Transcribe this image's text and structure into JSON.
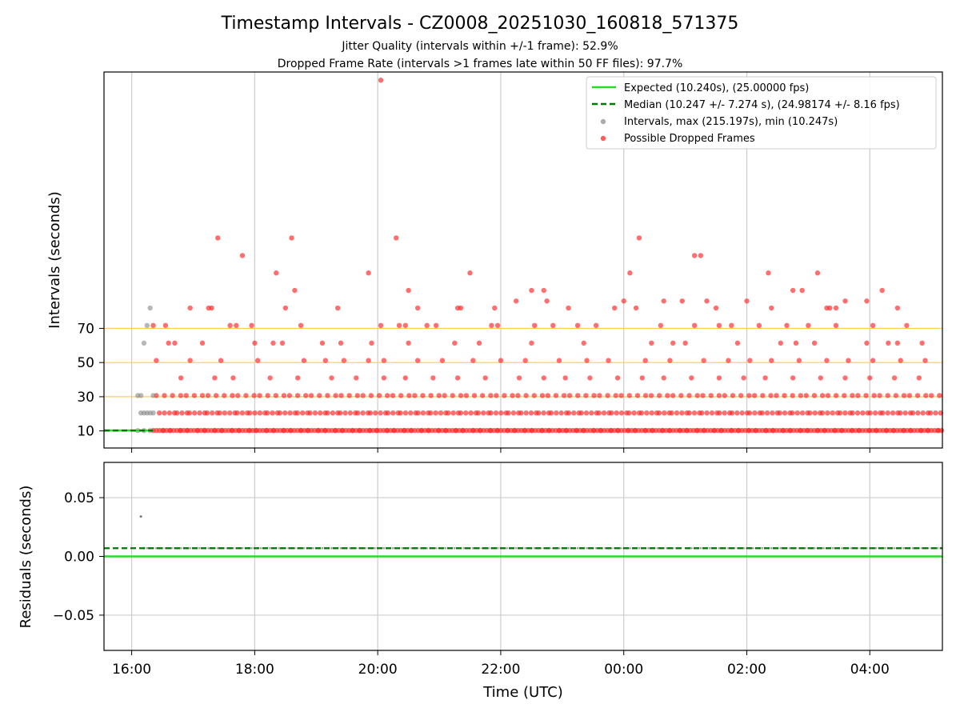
{
  "chart_data": {
    "type": "scatter",
    "title": "Timestamp Intervals - CZ0008_20251030_160818_571375",
    "subtitles": [
      "Jitter Quality (intervals within +/-1 frame): 52.9%",
      "Dropped Frame Rate (intervals >1 frames late within 50 FF files): 97.7%"
    ],
    "xlabel": "Time (UTC)",
    "x_ticks": [
      "16:00",
      "18:00",
      "20:00",
      "22:00",
      "00:00",
      "02:00",
      "04:00"
    ],
    "x_range_hours": [
      15.55,
      29.18
    ],
    "top_panel": {
      "ylabel": "Intervals (seconds)",
      "y_ticks": [
        "10",
        "30",
        "50",
        "70"
      ],
      "ylim": [
        0,
        220
      ],
      "reference_lines": [
        30,
        50,
        70
      ],
      "legend": [
        {
          "label": "Expected (10.240s), (25.00000 fps)",
          "style": "solid-line",
          "color": "#22dd22"
        },
        {
          "label": "Median (10.247 +/- 7.274 s), (24.98174 +/- 8.16 fps)",
          "style": "dashed-line",
          "color": "#007700"
        },
        {
          "label": "Intervals, max (215.197s), min (10.247s)",
          "style": "marker",
          "color": "#999999"
        },
        {
          "label": "Possible Dropped Frames",
          "style": "marker",
          "color": "#ff0000"
        }
      ],
      "expected_interval": 10.24,
      "median_interval": 10.247,
      "max_interval": 215.197,
      "min_interval": 10.247,
      "gray_points": [
        [
          16.1,
          10.2
        ],
        [
          16.15,
          20.5
        ],
        [
          16.2,
          20.5
        ],
        [
          16.25,
          20.5
        ],
        [
          16.3,
          20.5
        ],
        [
          16.35,
          20.5
        ],
        [
          16.1,
          30.7
        ],
        [
          16.15,
          30.7
        ],
        [
          16.35,
          30.7
        ],
        [
          16.2,
          61.4
        ],
        [
          16.25,
          71.7
        ],
        [
          16.3,
          81.9
        ],
        [
          16.2,
          10.2
        ],
        [
          16.3,
          10.2
        ]
      ],
      "outlier_points": [
        [
          17.4,
          122.9
        ],
        [
          17.8,
          112.6
        ],
        [
          18.35,
          102.4
        ],
        [
          18.6,
          122.9
        ],
        [
          18.65,
          92.2
        ],
        [
          17.3,
          81.9
        ],
        [
          17.25,
          81.9
        ],
        [
          16.95,
          81.9
        ],
        [
          18.5,
          81.9
        ],
        [
          19.35,
          81.9
        ],
        [
          19.85,
          102.4
        ],
        [
          20.05,
          215.2
        ],
        [
          20.3,
          122.9
        ],
        [
          20.5,
          92.2
        ],
        [
          20.65,
          81.9
        ],
        [
          21.3,
          81.9
        ],
        [
          21.35,
          81.9
        ],
        [
          21.5,
          102.4
        ],
        [
          21.9,
          81.9
        ],
        [
          22.25,
          86.0
        ],
        [
          22.5,
          92.2
        ],
        [
          22.7,
          92.2
        ],
        [
          22.75,
          86.0
        ],
        [
          24.1,
          102.4
        ],
        [
          24.25,
          122.9
        ],
        [
          24.2,
          81.9
        ],
        [
          24.65,
          86.0
        ],
        [
          24.95,
          86.0
        ],
        [
          25.15,
          112.6
        ],
        [
          25.25,
          112.6
        ],
        [
          25.35,
          86.0
        ],
        [
          25.5,
          81.9
        ],
        [
          26.0,
          86.0
        ],
        [
          26.35,
          102.4
        ],
        [
          26.4,
          81.9
        ],
        [
          26.75,
          92.2
        ],
        [
          26.9,
          92.2
        ],
        [
          27.15,
          102.4
        ],
        [
          27.3,
          81.9
        ],
        [
          27.45,
          81.9
        ],
        [
          27.6,
          86.0
        ],
        [
          27.95,
          86.0
        ],
        [
          28.2,
          92.2
        ],
        [
          28.45,
          81.9
        ],
        [
          23.85,
          81.9
        ],
        [
          23.1,
          81.9
        ],
        [
          24.0,
          86.0
        ],
        [
          27.35,
          81.9
        ],
        [
          16.35,
          71.7
        ],
        [
          16.55,
          71.7
        ],
        [
          17.6,
          71.7
        ],
        [
          17.7,
          71.7
        ],
        [
          17.95,
          71.7
        ],
        [
          18.75,
          71.7
        ],
        [
          20.05,
          71.7
        ],
        [
          20.35,
          71.7
        ],
        [
          20.45,
          71.7
        ],
        [
          20.8,
          71.7
        ],
        [
          20.95,
          71.7
        ],
        [
          21.85,
          71.7
        ],
        [
          21.95,
          71.7
        ],
        [
          22.55,
          71.7
        ],
        [
          22.85,
          71.7
        ],
        [
          23.25,
          71.7
        ],
        [
          23.55,
          71.7
        ],
        [
          24.6,
          71.7
        ],
        [
          25.15,
          71.7
        ],
        [
          25.55,
          71.7
        ],
        [
          25.75,
          71.7
        ],
        [
          26.2,
          71.7
        ],
        [
          26.65,
          71.7
        ],
        [
          27.0,
          71.7
        ],
        [
          27.45,
          71.7
        ],
        [
          28.05,
          71.7
        ],
        [
          28.6,
          71.7
        ],
        [
          16.6,
          61.4
        ],
        [
          16.7,
          61.4
        ],
        [
          17.15,
          61.4
        ],
        [
          18.0,
          61.4
        ],
        [
          18.3,
          61.4
        ],
        [
          18.45,
          61.4
        ],
        [
          19.1,
          61.4
        ],
        [
          19.4,
          61.4
        ],
        [
          19.9,
          61.4
        ],
        [
          20.5,
          61.4
        ],
        [
          21.25,
          61.4
        ],
        [
          21.65,
          61.4
        ],
        [
          22.5,
          61.4
        ],
        [
          23.35,
          61.4
        ],
        [
          24.45,
          61.4
        ],
        [
          24.8,
          61.4
        ],
        [
          25.0,
          61.4
        ],
        [
          25.85,
          61.4
        ],
        [
          26.55,
          61.4
        ],
        [
          26.8,
          61.4
        ],
        [
          27.1,
          61.4
        ],
        [
          27.95,
          61.4
        ],
        [
          28.3,
          61.4
        ],
        [
          28.45,
          61.4
        ],
        [
          28.85,
          61.4
        ],
        [
          16.4,
          51.2
        ],
        [
          16.95,
          51.2
        ],
        [
          17.45,
          51.2
        ],
        [
          18.05,
          51.2
        ],
        [
          18.8,
          51.2
        ],
        [
          19.15,
          51.2
        ],
        [
          19.45,
          51.2
        ],
        [
          19.85,
          51.2
        ],
        [
          20.1,
          51.2
        ],
        [
          20.65,
          51.2
        ],
        [
          21.05,
          51.2
        ],
        [
          21.55,
          51.2
        ],
        [
          22.0,
          51.2
        ],
        [
          22.4,
          51.2
        ],
        [
          22.95,
          51.2
        ],
        [
          23.4,
          51.2
        ],
        [
          23.75,
          51.2
        ],
        [
          24.35,
          51.2
        ],
        [
          24.75,
          51.2
        ],
        [
          25.3,
          51.2
        ],
        [
          25.7,
          51.2
        ],
        [
          26.05,
          51.2
        ],
        [
          26.4,
          51.2
        ],
        [
          26.85,
          51.2
        ],
        [
          27.3,
          51.2
        ],
        [
          27.65,
          51.2
        ],
        [
          28.05,
          51.2
        ],
        [
          28.5,
          51.2
        ],
        [
          28.9,
          51.2
        ],
        [
          16.8,
          41.0
        ],
        [
          17.35,
          41.0
        ],
        [
          17.65,
          41.0
        ],
        [
          18.25,
          41.0
        ],
        [
          18.7,
          41.0
        ],
        [
          19.25,
          41.0
        ],
        [
          19.65,
          41.0
        ],
        [
          20.1,
          41.0
        ],
        [
          20.45,
          41.0
        ],
        [
          20.9,
          41.0
        ],
        [
          21.3,
          41.0
        ],
        [
          21.75,
          41.0
        ],
        [
          22.3,
          41.0
        ],
        [
          22.7,
          41.0
        ],
        [
          23.05,
          41.0
        ],
        [
          23.45,
          41.0
        ],
        [
          23.9,
          41.0
        ],
        [
          24.3,
          41.0
        ],
        [
          24.65,
          41.0
        ],
        [
          25.1,
          41.0
        ],
        [
          25.55,
          41.0
        ],
        [
          25.95,
          41.0
        ],
        [
          26.3,
          41.0
        ],
        [
          26.75,
          41.0
        ],
        [
          27.2,
          41.0
        ],
        [
          27.6,
          41.0
        ],
        [
          28.0,
          41.0
        ],
        [
          28.4,
          41.0
        ],
        [
          28.8,
          41.0
        ]
      ],
      "dense_bands": [
        {
          "series": "dropped",
          "y": 10.247,
          "from": 16.35,
          "to": 29.18,
          "step": 0.04
        },
        {
          "series": "dropped",
          "y": 20.5,
          "from": 16.45,
          "to": 29.18,
          "step": 0.07
        },
        {
          "series": "dropped",
          "y": 30.7,
          "from": 16.4,
          "to": 29.18,
          "step": 0.12
        }
      ]
    },
    "bottom_panel": {
      "ylabel": "Residuals (seconds)",
      "y_ticks": [
        "0.05",
        "0.00",
        "−0.05"
      ],
      "ylim": [
        -0.08,
        0.08
      ],
      "expected_residual": 0.0,
      "median_residual": 0.007,
      "gray_points": [
        [
          16.15,
          0.034
        ],
        [
          16.2,
          0.007
        ]
      ],
      "dense_band": {
        "y": 0.007,
        "from": 16.2,
        "to": 29.18,
        "step": 0.05
      }
    }
  }
}
